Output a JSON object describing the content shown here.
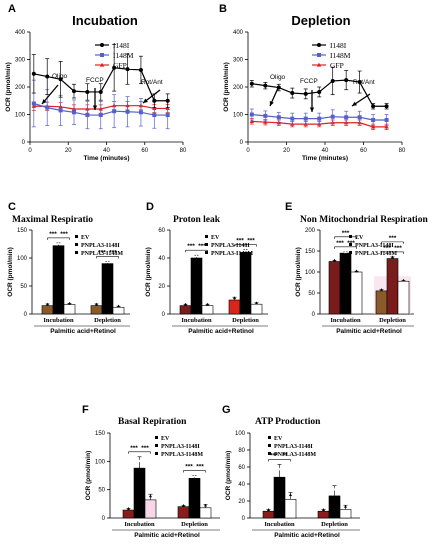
{
  "chart_data": [
    {
      "id": "A",
      "type": "line",
      "title": "Incubation",
      "xlabel": "Time (minutes)",
      "ylabel": "OCR (pmol/min)",
      "xlim": [
        0,
        80
      ],
      "ylim": [
        0,
        400
      ],
      "xticks": [
        0,
        20,
        40,
        60,
        80
      ],
      "yticks": [
        0,
        100,
        200,
        300,
        400
      ],
      "x": [
        2,
        9,
        16,
        23,
        30,
        37,
        44,
        51,
        58,
        65,
        72
      ],
      "series": [
        {
          "name": "I148I",
          "color": "#000000",
          "marker": "circle",
          "values": [
            248,
            238,
            228,
            185,
            182,
            182,
            270,
            265,
            262,
            150,
            150
          ],
          "err": [
            70,
            65,
            65,
            25,
            30,
            30,
            85,
            55,
            50,
            25,
            25
          ]
        },
        {
          "name": "I148M",
          "color": "#5561c9",
          "marker": "square",
          "values": [
            140,
            125,
            115,
            108,
            98,
            98,
            112,
            110,
            108,
            98,
            98
          ],
          "err": [
            85,
            65,
            55,
            45,
            50,
            50,
            60,
            55,
            50,
            48,
            50
          ]
        },
        {
          "name": "GFP",
          "color": "#e02020",
          "marker": "triangle",
          "values": [
            130,
            130,
            128,
            120,
            120,
            120,
            132,
            132,
            132,
            122,
            122
          ],
          "err": [
            15,
            15,
            15,
            15,
            15,
            15,
            15,
            15,
            15,
            15,
            15
          ]
        }
      ],
      "annotations": [
        "Oligo",
        "FCCP",
        "Rot/Ant"
      ]
    },
    {
      "id": "B",
      "type": "line",
      "title": "Depletion",
      "xlabel": "Time (minutes)",
      "ylabel": "OCR (pmol/min)",
      "xlim": [
        0,
        80
      ],
      "ylim": [
        0,
        400
      ],
      "xticks": [
        0,
        20,
        40,
        60,
        80
      ],
      "yticks": [
        0,
        100,
        200,
        300,
        400
      ],
      "x": [
        2,
        9,
        16,
        23,
        30,
        37,
        44,
        51,
        58,
        65,
        72
      ],
      "series": [
        {
          "name": "I148I",
          "color": "#000000",
          "marker": "circle",
          "values": [
            212,
            205,
            198,
            178,
            175,
            182,
            222,
            225,
            218,
            130,
            130
          ],
          "err": [
            12,
            12,
            12,
            18,
            18,
            18,
            50,
            35,
            40,
            10,
            10
          ]
        },
        {
          "name": "I148M",
          "color": "#5561c9",
          "marker": "square",
          "values": [
            100,
            95,
            90,
            85,
            85,
            85,
            92,
            90,
            90,
            80,
            80
          ],
          "err": [
            20,
            18,
            18,
            20,
            20,
            20,
            25,
            22,
            22,
            20,
            20
          ]
        },
        {
          "name": "GFP",
          "color": "#e02020",
          "marker": "triangle",
          "values": [
            75,
            72,
            70,
            65,
            65,
            65,
            70,
            70,
            70,
            55,
            55
          ],
          "err": [
            10,
            10,
            10,
            10,
            10,
            10,
            10,
            10,
            10,
            10,
            10
          ]
        }
      ],
      "annotations": [
        "Oligo",
        "FCCP",
        "Rot/Ant"
      ]
    },
    {
      "id": "C",
      "type": "bar",
      "title": "Maximal Respiratio",
      "ylabel": "OCR (pmol/min)",
      "xlabel": "Palmitic acid+Retinol",
      "ylim": [
        0,
        150
      ],
      "yticks": [
        0,
        50,
        100,
        150
      ],
      "categories": [
        "Incubation",
        "Depletion"
      ],
      "series": [
        {
          "name": "EV",
          "values": [
            15,
            15
          ],
          "err": [
            3,
            3
          ]
        },
        {
          "name": "PNPLA3-I148I",
          "values": [
            122,
            90
          ],
          "err": [
            5,
            4
          ]
        },
        {
          "name": "PNPLA3-I148M",
          "values": [
            17,
            12
          ],
          "err": [
            2,
            2
          ]
        }
      ],
      "significance": [
        "***",
        "***",
        "***",
        "***"
      ]
    },
    {
      "id": "D",
      "type": "bar",
      "title": "Proton leak",
      "ylabel": "OCR (pmol/min)",
      "xlabel": "Palmitic acid+Retinol",
      "ylim": [
        0,
        60
      ],
      "yticks": [
        0,
        20,
        40,
        60
      ],
      "categories": [
        "Incubation",
        "Depletion"
      ],
      "series": [
        {
          "name": "EV",
          "values": [
            6,
            10
          ],
          "err": [
            1,
            2
          ]
        },
        {
          "name": "PNPLA3-I148I",
          "values": [
            40,
            44
          ],
          "err": [
            2,
            2
          ]
        },
        {
          "name": "PNPLA3-I148M",
          "values": [
            6,
            7
          ],
          "err": [
            1,
            1
          ]
        }
      ],
      "significance": [
        "***",
        "***",
        "***",
        "***"
      ]
    },
    {
      "id": "E",
      "type": "bar",
      "title": "Non Mitochondrial Respiration",
      "ylabel": "OCR (pmol/min)",
      "xlabel": "Palmitic acid+Retinol",
      "ylim": [
        0,
        200
      ],
      "yticks": [
        0,
        50,
        100,
        150,
        200
      ],
      "categories": [
        "Incubation",
        "Depletion"
      ],
      "series": [
        {
          "name": "EV",
          "values": [
            125,
            55
          ],
          "err": [
            3,
            3
          ]
        },
        {
          "name": "PNPLA3-I148I",
          "values": [
            145,
            132
          ],
          "err": [
            3,
            4
          ]
        },
        {
          "name": "PNPLA3-I148M",
          "values": [
            100,
            78
          ],
          "err": [
            2,
            2
          ]
        }
      ],
      "significance": [
        "***",
        "***",
        "***",
        "***",
        "***",
        "***",
        "***",
        "***"
      ]
    },
    {
      "id": "F",
      "type": "bar",
      "title": "Basal Repiration",
      "ylabel": "OCR (pmol/min)",
      "xlabel": "Palmitic acid+Retinol",
      "ylim": [
        0,
        150
      ],
      "yticks": [
        0,
        50,
        100,
        150
      ],
      "categories": [
        "Incubation",
        "Depletion"
      ],
      "series": [
        {
          "name": "EV",
          "values": [
            14,
            20
          ],
          "err": [
            3,
            2
          ]
        },
        {
          "name": "PNPLA3-I148I",
          "values": [
            88,
            70
          ],
          "err": [
            20,
            5
          ]
        },
        {
          "name": "PNPLA3-I148M",
          "values": [
            32,
            18
          ],
          "err": [
            10,
            6
          ]
        }
      ],
      "significance": [
        "***",
        "***",
        "***",
        "***"
      ]
    },
    {
      "id": "G",
      "type": "bar",
      "title": "ATP Production",
      "ylabel": "OCR (pmol/min)",
      "xlabel": "Palmitic acid+Retinol",
      "ylim": [
        0,
        100
      ],
      "yticks": [
        0,
        20,
        40,
        60,
        80,
        100
      ],
      "categories": [
        "Incubation",
        "Depletion"
      ],
      "series": [
        {
          "name": "EV",
          "values": [
            8,
            8
          ],
          "err": [
            2,
            2
          ]
        },
        {
          "name": "PNPLA3-I148I",
          "values": [
            48,
            26
          ],
          "err": [
            15,
            12
          ]
        },
        {
          "name": "PNPLA3-I148M",
          "values": [
            22,
            10
          ],
          "err": [
            8,
            5
          ]
        }
      ],
      "significance": [
        "***",
        "**"
      ]
    }
  ]
}
